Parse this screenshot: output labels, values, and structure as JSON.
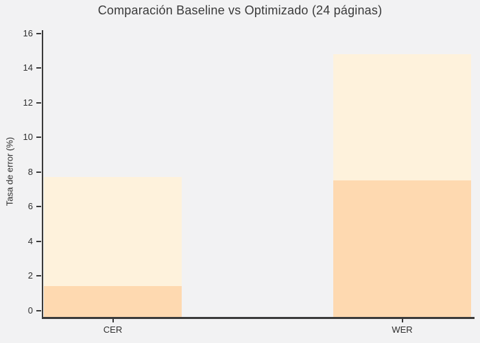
{
  "figure": {
    "title": "Comparación Baseline vs Optimizado (24 páginas)"
  },
  "chart_data": {
    "type": "bar",
    "title": "Comparación Baseline vs Optimizado (24 páginas)",
    "categories": [
      "CER",
      "WER"
    ],
    "series": [
      {
        "name": "Baseline",
        "values": [
          7.7,
          14.8
        ],
        "color": "#fef2dc"
      },
      {
        "name": "Optimizado",
        "values": [
          1.4,
          7.5
        ],
        "color": "#fed9b0"
      }
    ],
    "bar_style": "overlapping",
    "xlabel": "",
    "ylabel": "Tasa de error (%)",
    "yticks": [
      0,
      2,
      4,
      6,
      8,
      10,
      12,
      14,
      16
    ],
    "ylim": [
      -0.4,
      16.2
    ],
    "grid": false,
    "legend": "none",
    "colors": {
      "background": "#f2f2f3",
      "axis": "#3a3a3a",
      "text": "#2e2e2e"
    }
  }
}
